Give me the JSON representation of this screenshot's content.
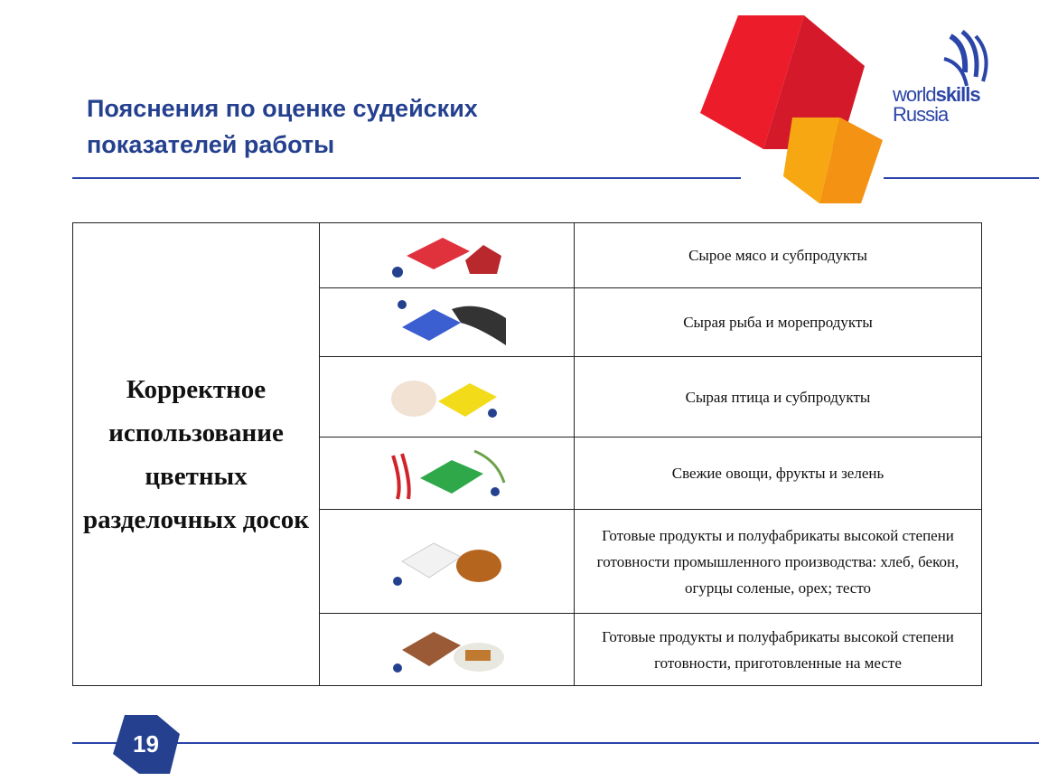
{
  "slide": {
    "title_line1": "Пояснения по оценке судейских",
    "title_line2": "показателей работы",
    "page_number": "19"
  },
  "logo": {
    "text_world": "world",
    "text_skills": "skills",
    "text_country": "Russia",
    "color": "#2b45a8"
  },
  "colors": {
    "accent": "#24408f",
    "red_cube": "#e21b2b",
    "orange_cube": "#f5a00f"
  },
  "table": {
    "left_header": "Корректное использование цветных разделочных досок",
    "rows": [
      {
        "board_color": "#e0323c",
        "icon": "red-board-meat",
        "label": "Сырое мясо и субпродукты"
      },
      {
        "board_color": "#3b5fd0",
        "icon": "blue-board-fish",
        "label": "Сырая рыба и морепродукты"
      },
      {
        "board_color": "#f2dc1a",
        "icon": "yellow-board-poultry",
        "label": "Сырая птица и субпродукты"
      },
      {
        "board_color": "#2fa84a",
        "icon": "green-board-vegetables",
        "label": "Свежие овощи, фрукты и зелень"
      },
      {
        "board_color": "#f2f2f2",
        "icon": "white-board-bread",
        "label": "Готовые продукты и полуфабрикаты высокой степени готовности промышленного производства: хлеб, бекон, огурцы соленые, орех; тесто"
      },
      {
        "board_color": "#9a5a35",
        "icon": "brown-board-cooked-food",
        "label": "Готовые продукты и полуфабрикаты высокой степени готовности, приготовленные на месте"
      }
    ]
  }
}
